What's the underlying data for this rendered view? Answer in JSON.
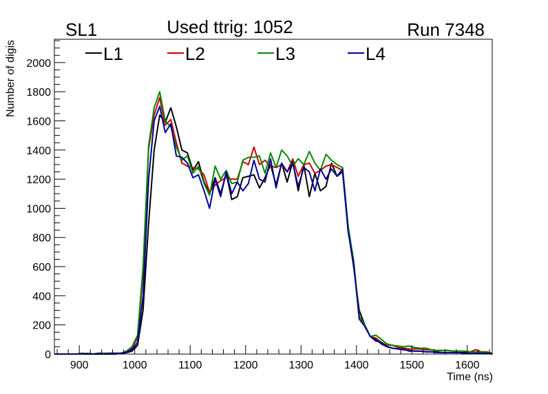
{
  "chart_data": {
    "type": "line",
    "title": "Used ttrig: 1052",
    "left_label": "SL1",
    "right_label": "Run 7348",
    "xlabel": "Time (ns)",
    "ylabel": "Number of digis",
    "xlim": [
      855,
      1645
    ],
    "ylim": [
      0,
      2160
    ],
    "x_major_ticks": [
      900,
      1000,
      1100,
      1200,
      1300,
      1400,
      1500,
      1600
    ],
    "y_major_ticks": [
      0,
      200,
      400,
      600,
      800,
      1000,
      1200,
      1400,
      1600,
      1800,
      2000
    ],
    "x_minor_step": 20,
    "y_minor_step": 50,
    "legend_position": "top-left",
    "x": [
      855,
      865,
      875,
      885,
      895,
      905,
      915,
      925,
      935,
      945,
      955,
      965,
      975,
      985,
      995,
      1005,
      1015,
      1025,
      1035,
      1045,
      1055,
      1065,
      1075,
      1085,
      1095,
      1105,
      1115,
      1125,
      1135,
      1145,
      1155,
      1165,
      1175,
      1185,
      1195,
      1205,
      1215,
      1225,
      1235,
      1245,
      1255,
      1265,
      1275,
      1285,
      1295,
      1305,
      1315,
      1325,
      1335,
      1345,
      1355,
      1365,
      1375,
      1385,
      1395,
      1405,
      1415,
      1425,
      1435,
      1445,
      1455,
      1465,
      1475,
      1485,
      1495,
      1505,
      1515,
      1525,
      1535,
      1545,
      1555,
      1565,
      1575,
      1585,
      1595,
      1605,
      1615,
      1625,
      1635,
      1645
    ],
    "series": [
      {
        "name": "L1",
        "color": "#000000",
        "values": [
          0,
          0,
          0,
          0,
          0,
          0,
          0,
          0,
          0,
          0,
          0,
          0,
          5,
          10,
          20,
          60,
          300,
          900,
          1400,
          1640,
          1590,
          1690,
          1560,
          1400,
          1380,
          1260,
          1320,
          1180,
          1100,
          1210,
          1100,
          1240,
          1060,
          1080,
          1210,
          1220,
          1230,
          1140,
          1210,
          1300,
          1160,
          1310,
          1180,
          1320,
          1120,
          1300,
          1080,
          1240,
          1120,
          1150,
          1310,
          1220,
          1250,
          850,
          600,
          300,
          200,
          120,
          100,
          70,
          50,
          40,
          35,
          30,
          25,
          20,
          20,
          15,
          15,
          15,
          10,
          10,
          10,
          10,
          10,
          5,
          5,
          5,
          5,
          0
        ]
      },
      {
        "name": "L2",
        "color": "#cc0000",
        "values": [
          0,
          0,
          0,
          0,
          0,
          0,
          5,
          0,
          5,
          5,
          5,
          5,
          5,
          15,
          40,
          110,
          550,
          1410,
          1640,
          1760,
          1570,
          1610,
          1450,
          1310,
          1290,
          1280,
          1270,
          1230,
          1110,
          1160,
          1190,
          1210,
          1200,
          1200,
          1320,
          1300,
          1420,
          1300,
          1330,
          1290,
          1280,
          1300,
          1250,
          1340,
          1220,
          1300,
          1310,
          1240,
          1260,
          1290,
          1300,
          1280,
          1260,
          860,
          630,
          260,
          190,
          120,
          110,
          80,
          60,
          60,
          45,
          40,
          35,
          35,
          35,
          30,
          30,
          25,
          25,
          25,
          20,
          20,
          20,
          15,
          30,
          15,
          15,
          5
        ]
      },
      {
        "name": "L3",
        "color": "#008800",
        "values": [
          0,
          0,
          0,
          0,
          0,
          0,
          5,
          0,
          5,
          5,
          5,
          5,
          5,
          20,
          50,
          130,
          600,
          1430,
          1690,
          1800,
          1600,
          1560,
          1420,
          1330,
          1360,
          1240,
          1290,
          1170,
          1090,
          1290,
          1200,
          1260,
          1170,
          1180,
          1330,
          1350,
          1350,
          1360,
          1240,
          1380,
          1280,
          1400,
          1360,
          1290,
          1340,
          1300,
          1390,
          1310,
          1260,
          1370,
          1330,
          1300,
          1280,
          880,
          640,
          260,
          200,
          120,
          130,
          100,
          70,
          60,
          55,
          50,
          55,
          45,
          40,
          40,
          30,
          25,
          25,
          25,
          20,
          20,
          20,
          15,
          15,
          15,
          10,
          5
        ]
      },
      {
        "name": "L4",
        "color": "#000099",
        "values": [
          0,
          0,
          0,
          0,
          0,
          5,
          0,
          0,
          5,
          0,
          5,
          5,
          5,
          15,
          30,
          80,
          400,
          1200,
          1600,
          1700,
          1520,
          1580,
          1360,
          1350,
          1310,
          1210,
          1230,
          1120,
          1000,
          1200,
          1080,
          1250,
          1100,
          1180,
          1120,
          1170,
          1330,
          1200,
          1180,
          1340,
          1140,
          1310,
          1250,
          1310,
          1150,
          1280,
          1250,
          1120,
          1270,
          1200,
          1270,
          1220,
          1270,
          840,
          620,
          240,
          190,
          120,
          90,
          80,
          50,
          40,
          35,
          35,
          20,
          20,
          20,
          15,
          15,
          10,
          10,
          10,
          10,
          10,
          5,
          5,
          5,
          5,
          5,
          0
        ]
      }
    ]
  }
}
